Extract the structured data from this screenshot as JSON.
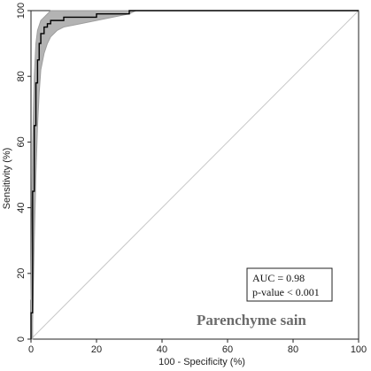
{
  "chart_data": {
    "type": "line",
    "title": "Parenchyme sain",
    "xlabel": "100 - Specificity (%)",
    "ylabel": "Sensitivity (%)",
    "xlim": [
      0,
      100
    ],
    "ylim": [
      0,
      100
    ],
    "x_ticks": [
      "0",
      "20",
      "40",
      "60",
      "80",
      "100"
    ],
    "y_ticks": [
      "0",
      "20",
      "40",
      "60",
      "80",
      "100"
    ],
    "grid": false,
    "annotation": {
      "auc_text": "AUC = 0.98",
      "p_text": "p-value < 0.001"
    },
    "series": [
      {
        "role": "roc",
        "color": "#000000",
        "points": [
          [
            0,
            0
          ],
          [
            0,
            8
          ],
          [
            0.5,
            8
          ],
          [
            0.5,
            45
          ],
          [
            1,
            45
          ],
          [
            1,
            65
          ],
          [
            1.5,
            65
          ],
          [
            1.5,
            78
          ],
          [
            2,
            78
          ],
          [
            2,
            85
          ],
          [
            2.5,
            85
          ],
          [
            2.5,
            90
          ],
          [
            3,
            90
          ],
          [
            3,
            93
          ],
          [
            4,
            93
          ],
          [
            4,
            95
          ],
          [
            5,
            95
          ],
          [
            5,
            96
          ],
          [
            6,
            96
          ],
          [
            6,
            97
          ],
          [
            10,
            97
          ],
          [
            10,
            98
          ],
          [
            20,
            98
          ],
          [
            20,
            99
          ],
          [
            30,
            99
          ],
          [
            30,
            100
          ],
          [
            100,
            100
          ]
        ]
      },
      {
        "role": "ci-upper",
        "color": "#9e9e9e",
        "points": [
          [
            0,
            12
          ],
          [
            0.5,
            60
          ],
          [
            1,
            80
          ],
          [
            1.5,
            90
          ],
          [
            2,
            94
          ],
          [
            3,
            97
          ],
          [
            4,
            98
          ],
          [
            5,
            99
          ],
          [
            6,
            100
          ],
          [
            100,
            100
          ]
        ]
      },
      {
        "role": "ci-lower",
        "color": "#9e9e9e",
        "points": [
          [
            0,
            0
          ],
          [
            0.5,
            0
          ],
          [
            0.5,
            5
          ],
          [
            1,
            30
          ],
          [
            1.5,
            50
          ],
          [
            2,
            65
          ],
          [
            2.5,
            75
          ],
          [
            3,
            82
          ],
          [
            4,
            87
          ],
          [
            5,
            90
          ],
          [
            6,
            92
          ],
          [
            8,
            94
          ],
          [
            10,
            95
          ],
          [
            15,
            96
          ],
          [
            20,
            97
          ],
          [
            25,
            98
          ],
          [
            30,
            99
          ],
          [
            32,
            100
          ],
          [
            100,
            100
          ]
        ]
      },
      {
        "role": "reference",
        "color": "#c8c8c8",
        "points": [
          [
            0,
            0
          ],
          [
            100,
            100
          ]
        ]
      }
    ]
  }
}
